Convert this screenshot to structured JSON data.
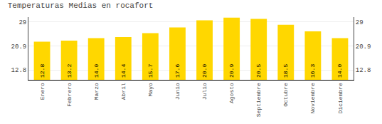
{
  "chart_data": {
    "type": "bar",
    "title": "Temperaturas Medias en rocafort",
    "categories": [
      "Enero",
      "Febrero",
      "Marzo",
      "Abril",
      "Mayo",
      "Junio",
      "Julio",
      "Agosto",
      "Septiembre",
      "Octubre",
      "Noviembre",
      "Diciembre"
    ],
    "values": [
      12.8,
      13.2,
      14.0,
      14.4,
      15.7,
      17.6,
      20.0,
      20.9,
      20.5,
      18.5,
      16.3,
      14.0
    ],
    "value_labels": [
      "12.8",
      "13.2",
      "14.0",
      "14.4",
      "15.7",
      "17.6",
      "20.0",
      "20.9",
      "20.5",
      "18.5",
      "16.3",
      "14.0"
    ],
    "baseline": 9.5,
    "color": "#FFD700",
    "data_labels": true,
    "ylim": [
      9.5,
      30.6
    ],
    "yticks": [
      12.8,
      20.9,
      29
    ],
    "y2lim": [
      9.5,
      30.6
    ],
    "y2ticks": [
      12.8,
      20.9,
      29
    ],
    "grid": true
  }
}
